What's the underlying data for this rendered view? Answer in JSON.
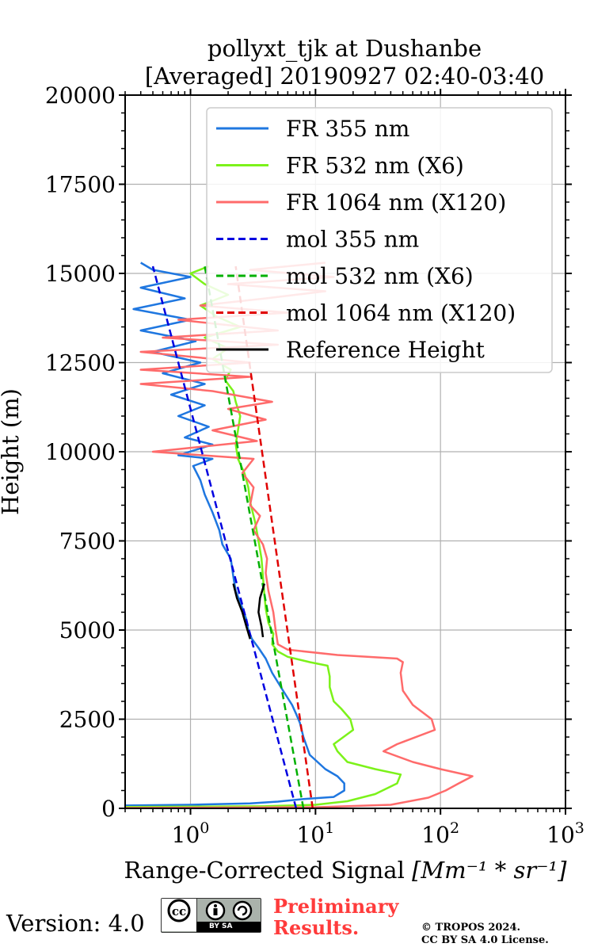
{
  "chart_data": {
    "type": "line",
    "title_line1": "pollyxt_tjk at Dushanbe",
    "title_line2": "[Averaged] 20190927 02:40-03:40",
    "xlabel": "Range-Corrected Signal",
    "xlabel_units": "[Mm⁻¹ * sr⁻¹]",
    "ylabel": "Height (m)",
    "x_scale": "log",
    "xlim": [
      0.3,
      1000
    ],
    "ylim": [
      0,
      20000
    ],
    "x_ticks": [
      {
        "mant": "10",
        "exp": "0"
      },
      {
        "mant": "10",
        "exp": "1"
      },
      {
        "mant": "10",
        "exp": "2"
      },
      {
        "mant": "10",
        "exp": "3"
      }
    ],
    "y_ticks": [
      "0",
      "2500",
      "5000",
      "7500",
      "10000",
      "12500",
      "15000",
      "17500",
      "20000"
    ],
    "grid": true,
    "legend_position": "top-right",
    "series": [
      {
        "name": "FR 355 nm",
        "color": "#1f77e0",
        "style": "solid",
        "points": [
          [
            0.3,
            80
          ],
          [
            1,
            100
          ],
          [
            3,
            140
          ],
          [
            5,
            190
          ],
          [
            8,
            260
          ],
          [
            14,
            320
          ],
          [
            17,
            500
          ],
          [
            17,
            700
          ],
          [
            15,
            900
          ],
          [
            12,
            1100
          ],
          [
            9,
            1500
          ],
          [
            8,
            2000
          ],
          [
            7.5,
            2400
          ],
          [
            7,
            2650
          ],
          [
            6.5,
            2900
          ],
          [
            5.5,
            3300
          ],
          [
            4.5,
            3800
          ],
          [
            4,
            4200
          ],
          [
            3.5,
            4500
          ],
          [
            3.1,
            4750
          ],
          [
            2.9,
            5000
          ],
          [
            2.8,
            5300
          ],
          [
            2.55,
            5700
          ],
          [
            2.3,
            6100
          ],
          [
            2.2,
            6500
          ],
          [
            2.1,
            7000
          ],
          [
            1.8,
            7400
          ],
          [
            1.7,
            7800
          ],
          [
            1.5,
            8300
          ],
          [
            1.3,
            8800
          ],
          [
            1.2,
            9200
          ],
          [
            1.05,
            9600
          ],
          [
            1.5,
            9800
          ],
          [
            0.8,
            9900
          ],
          [
            1.5,
            10200
          ],
          [
            0.9,
            10400
          ],
          [
            1.4,
            10700
          ],
          [
            0.8,
            11000
          ],
          [
            1.3,
            11300
          ],
          [
            0.7,
            11600
          ],
          [
            1.3,
            11900
          ],
          [
            0.6,
            12200
          ],
          [
            1.2,
            12500
          ],
          [
            0.5,
            12800
          ],
          [
            1.1,
            13100
          ],
          [
            0.4,
            13400
          ],
          [
            1,
            13700
          ],
          [
            0.35,
            14000
          ],
          [
            0.9,
            14300
          ],
          [
            0.4,
            14600
          ],
          [
            1,
            14900
          ],
          [
            0.5,
            15100
          ],
          [
            0.4,
            15300
          ]
        ]
      },
      {
        "name": "FR 532 nm (X6)",
        "color": "#7cf21a",
        "style": "solid",
        "points": [
          [
            0.3,
            40
          ],
          [
            4,
            60
          ],
          [
            10,
            100
          ],
          [
            18,
            200
          ],
          [
            30,
            400
          ],
          [
            45,
            700
          ],
          [
            48,
            950
          ],
          [
            30,
            1100
          ],
          [
            18,
            1300
          ],
          [
            15,
            1600
          ],
          [
            14,
            1800
          ],
          [
            20,
            2200
          ],
          [
            19,
            2500
          ],
          [
            16,
            2800
          ],
          [
            14,
            3000
          ],
          [
            13,
            3400
          ],
          [
            13,
            3700
          ],
          [
            12.5,
            4000
          ],
          [
            9,
            4100
          ],
          [
            6,
            4250
          ],
          [
            5,
            4400
          ],
          [
            4.5,
            4600
          ],
          [
            4.6,
            4900
          ],
          [
            4.2,
            5200
          ],
          [
            4,
            5600
          ],
          [
            3.9,
            6000
          ],
          [
            3.8,
            6500
          ],
          [
            3.7,
            7000
          ],
          [
            3.5,
            7500
          ],
          [
            3.3,
            8000
          ],
          [
            3,
            8600
          ],
          [
            2.9,
            9000
          ],
          [
            2.7,
            9400
          ],
          [
            2.4,
            9800
          ],
          [
            2.3,
            10200
          ],
          [
            2.4,
            10600
          ],
          [
            2.5,
            11000
          ],
          [
            2.3,
            11400
          ],
          [
            2.2,
            11700
          ],
          [
            1.9,
            12000
          ],
          [
            2.1,
            12300
          ],
          [
            1.5,
            12600
          ],
          [
            2,
            12900
          ],
          [
            1.3,
            13200
          ],
          [
            2.5,
            13500
          ],
          [
            1.6,
            13800
          ],
          [
            1.2,
            14100
          ],
          [
            2,
            14400
          ],
          [
            1.3,
            14700
          ],
          [
            1,
            15000
          ],
          [
            1.4,
            15200
          ]
        ]
      },
      {
        "name": "FR 1064 nm (X120)",
        "color": "#ff6b6b",
        "style": "solid",
        "points": [
          [
            0.3,
            10
          ],
          [
            10,
            30
          ],
          [
            40,
            100
          ],
          [
            80,
            300
          ],
          [
            110,
            500
          ],
          [
            140,
            700
          ],
          [
            180,
            900
          ],
          [
            100,
            1100
          ],
          [
            60,
            1300
          ],
          [
            35,
            1600
          ],
          [
            45,
            1800
          ],
          [
            90,
            2200
          ],
          [
            85,
            2500
          ],
          [
            60,
            2900
          ],
          [
            50,
            3300
          ],
          [
            48,
            3800
          ],
          [
            50,
            4100
          ],
          [
            45,
            4200
          ],
          [
            15,
            4300
          ],
          [
            6,
            4450
          ],
          [
            5,
            4600
          ],
          [
            4.8,
            5000
          ],
          [
            4.6,
            5500
          ],
          [
            4.2,
            6100
          ],
          [
            4,
            6600
          ],
          [
            4.1,
            7000
          ],
          [
            3.8,
            7400
          ],
          [
            3.2,
            7800
          ],
          [
            3.6,
            8200
          ],
          [
            3,
            8500
          ],
          [
            3.2,
            9000
          ],
          [
            2.6,
            9400
          ],
          [
            3.2,
            9800
          ],
          [
            0.5,
            10000
          ],
          [
            3.4,
            10300
          ],
          [
            1.5,
            10600
          ],
          [
            4,
            10900
          ],
          [
            2,
            11200
          ],
          [
            4.5,
            11400
          ],
          [
            1.5,
            11700
          ],
          [
            0.4,
            11900
          ],
          [
            3,
            12100
          ],
          [
            0.4,
            12300
          ],
          [
            3,
            12500
          ],
          [
            0.4,
            12800
          ],
          [
            5,
            13000
          ],
          [
            0.6,
            13200
          ],
          [
            5,
            13400
          ],
          [
            0.8,
            13700
          ],
          [
            6,
            13900
          ],
          [
            1.2,
            14100
          ],
          [
            4,
            14300
          ],
          [
            12,
            14500
          ],
          [
            2,
            14700
          ],
          [
            14,
            14900
          ],
          [
            3,
            15100
          ],
          [
            12,
            15300
          ]
        ]
      },
      {
        "name": "mol 355 nm",
        "color": "#0000e0",
        "style": "dashed",
        "points": [
          [
            7,
            0
          ],
          [
            0.5,
            15200
          ]
        ]
      },
      {
        "name": "mol 532 nm (X6)",
        "color": "#00b000",
        "style": "dashed",
        "points": [
          [
            8,
            0
          ],
          [
            1.3,
            15200
          ]
        ]
      },
      {
        "name": "mol 1064 nm (X120)",
        "color": "#e00000",
        "style": "dashed",
        "points": [
          [
            9.5,
            0
          ],
          [
            2.3,
            15200
          ]
        ]
      },
      {
        "name": "Reference Height",
        "color": "#000000",
        "style": "solid",
        "points": [],
        "segments": [
          [
            [
              3.0,
              4750
            ],
            [
              2.8,
              5100
            ],
            [
              2.6,
              5500
            ],
            [
              2.35,
              5900
            ],
            [
              2.2,
              6300
            ]
          ],
          [
            [
              3.8,
              4800
            ],
            [
              3.7,
              5100
            ],
            [
              3.5,
              5500
            ],
            [
              3.6,
              5900
            ],
            [
              3.9,
              6300
            ]
          ]
        ]
      }
    ]
  },
  "footer": {
    "version": "Version: 4.0",
    "license_badge": "BY   SA",
    "preliminary_line1": "Preliminary",
    "preliminary_line2": "Results.",
    "copyright_line1": "© TROPOS 2024.",
    "copyright_line2": "CC BY SA 4.0 License."
  }
}
